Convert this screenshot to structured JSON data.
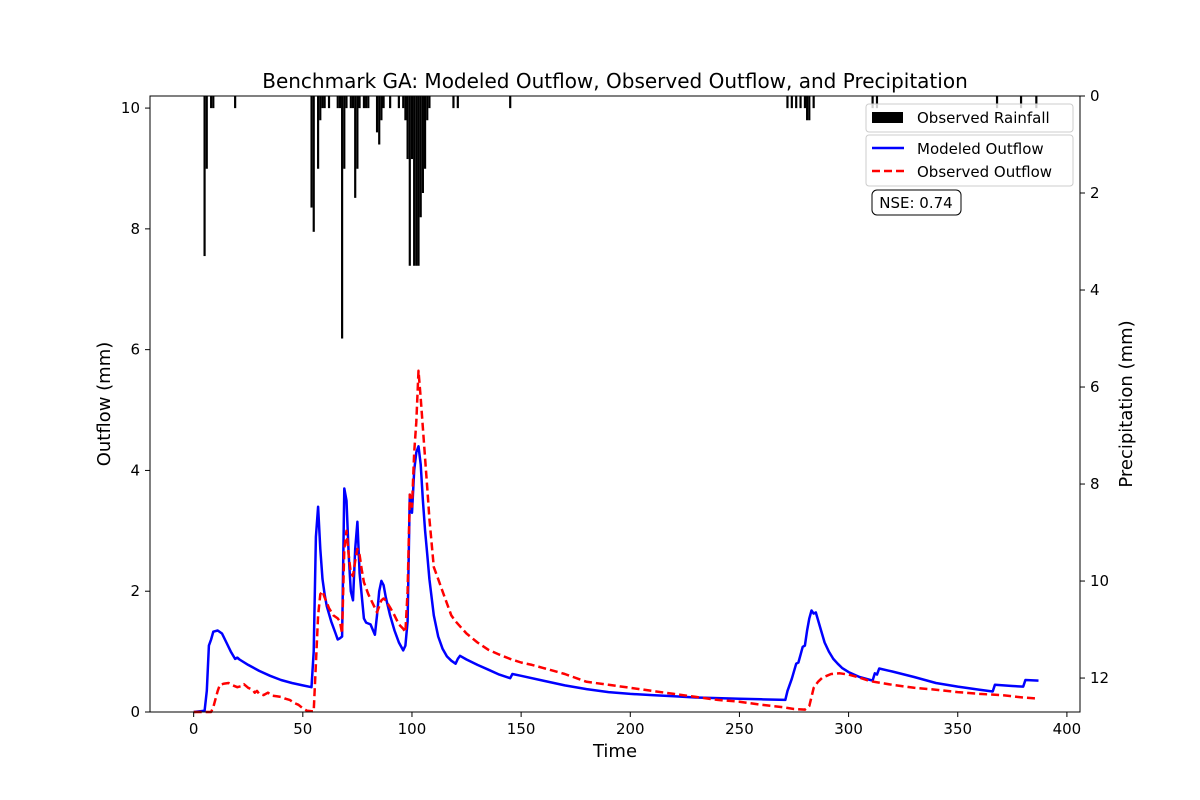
{
  "chart_data": {
    "type": "line",
    "title": "Benchmark GA: Modeled Outflow, Observed Outflow, and Precipitation",
    "xlabel": "Time",
    "ylabel": "Outflow (mm)",
    "y2label": "Precipitation (mm)",
    "xlim": [
      -20,
      406
    ],
    "ylim": [
      0,
      10.2
    ],
    "y2lim": [
      12.7,
      0
    ],
    "y2_inverted": true,
    "xticks": [
      0,
      50,
      100,
      150,
      200,
      250,
      300,
      350,
      400
    ],
    "yticks": [
      0,
      2,
      4,
      6,
      8,
      10
    ],
    "y2ticks": [
      0,
      2,
      4,
      6,
      8,
      10,
      12
    ],
    "grid": false,
    "legend_placement": "top-right",
    "annotation": "NSE: 0.74",
    "series": [
      {
        "name": "Modeled Outflow",
        "color": "#0000ff",
        "style": "solid",
        "points": [
          [
            0,
            0
          ],
          [
            5,
            0.02
          ],
          [
            6,
            0.35
          ],
          [
            7,
            1.1
          ],
          [
            8,
            1.2
          ],
          [
            9,
            1.33
          ],
          [
            11,
            1.35
          ],
          [
            13,
            1.3
          ],
          [
            15,
            1.15
          ],
          [
            17,
            1.0
          ],
          [
            19,
            0.88
          ],
          [
            20,
            0.9
          ],
          [
            21,
            0.87
          ],
          [
            25,
            0.78
          ],
          [
            30,
            0.68
          ],
          [
            35,
            0.6
          ],
          [
            40,
            0.53
          ],
          [
            45,
            0.48
          ],
          [
            50,
            0.44
          ],
          [
            54,
            0.41
          ],
          [
            55,
            1.0
          ],
          [
            56,
            2.9
          ],
          [
            57,
            3.4
          ],
          [
            58,
            2.7
          ],
          [
            59,
            2.2
          ],
          [
            60,
            1.95
          ],
          [
            61,
            1.75
          ],
          [
            63,
            1.5
          ],
          [
            65,
            1.3
          ],
          [
            66,
            1.2
          ],
          [
            67,
            1.22
          ],
          [
            68,
            1.25
          ],
          [
            69,
            3.7
          ],
          [
            70,
            3.5
          ],
          [
            71,
            2.6
          ],
          [
            72,
            2.0
          ],
          [
            73,
            1.85
          ],
          [
            74,
            2.7
          ],
          [
            75,
            3.15
          ],
          [
            76,
            2.3
          ],
          [
            78,
            1.55
          ],
          [
            79,
            1.48
          ],
          [
            81,
            1.45
          ],
          [
            83,
            1.28
          ],
          [
            84,
            1.6
          ],
          [
            85,
            2.0
          ],
          [
            86,
            2.17
          ],
          [
            87,
            2.1
          ],
          [
            88,
            1.9
          ],
          [
            90,
            1.6
          ],
          [
            92,
            1.35
          ],
          [
            94,
            1.15
          ],
          [
            96,
            1.02
          ],
          [
            97,
            1.1
          ],
          [
            98,
            1.5
          ],
          [
            99,
            3.6
          ],
          [
            100,
            3.3
          ],
          [
            101,
            4.0
          ],
          [
            102,
            4.3
          ],
          [
            103,
            4.4
          ],
          [
            104,
            4.1
          ],
          [
            105,
            3.5
          ],
          [
            106,
            3.0
          ],
          [
            107,
            2.6
          ],
          [
            108,
            2.2
          ],
          [
            110,
            1.6
          ],
          [
            112,
            1.25
          ],
          [
            114,
            1.05
          ],
          [
            116,
            0.92
          ],
          [
            118,
            0.85
          ],
          [
            120,
            0.8
          ],
          [
            121,
            0.88
          ],
          [
            122,
            0.93
          ],
          [
            125,
            0.87
          ],
          [
            130,
            0.78
          ],
          [
            135,
            0.7
          ],
          [
            140,
            0.62
          ],
          [
            145,
            0.56
          ],
          [
            146,
            0.63
          ],
          [
            150,
            0.6
          ],
          [
            160,
            0.52
          ],
          [
            170,
            0.44
          ],
          [
            180,
            0.38
          ],
          [
            190,
            0.33
          ],
          [
            200,
            0.3
          ],
          [
            210,
            0.28
          ],
          [
            220,
            0.26
          ],
          [
            230,
            0.24
          ],
          [
            240,
            0.23
          ],
          [
            250,
            0.22
          ],
          [
            260,
            0.21
          ],
          [
            271,
            0.2
          ],
          [
            272,
            0.35
          ],
          [
            274,
            0.55
          ],
          [
            276,
            0.8
          ],
          [
            277,
            0.82
          ],
          [
            278,
            0.95
          ],
          [
            279,
            1.08
          ],
          [
            280,
            1.1
          ],
          [
            281,
            1.35
          ],
          [
            282,
            1.55
          ],
          [
            283,
            1.68
          ],
          [
            284,
            1.63
          ],
          [
            285,
            1.65
          ],
          [
            287,
            1.4
          ],
          [
            289,
            1.15
          ],
          [
            291,
            1.0
          ],
          [
            293,
            0.88
          ],
          [
            295,
            0.8
          ],
          [
            297,
            0.73
          ],
          [
            300,
            0.66
          ],
          [
            305,
            0.58
          ],
          [
            310,
            0.53
          ],
          [
            311,
            0.52
          ],
          [
            312,
            0.64
          ],
          [
            313,
            0.62
          ],
          [
            314,
            0.72
          ],
          [
            320,
            0.67
          ],
          [
            330,
            0.58
          ],
          [
            340,
            0.48
          ],
          [
            350,
            0.42
          ],
          [
            360,
            0.37
          ],
          [
            366,
            0.34
          ],
          [
            367,
            0.45
          ],
          [
            375,
            0.43
          ],
          [
            380,
            0.42
          ],
          [
            381,
            0.53
          ],
          [
            387,
            0.52
          ]
        ]
      },
      {
        "name": "Observed Outflow",
        "color": "#ff0000",
        "style": "dashed",
        "points": [
          [
            0,
            0
          ],
          [
            8,
            0
          ],
          [
            9,
            0.08
          ],
          [
            11,
            0.35
          ],
          [
            12,
            0.45
          ],
          [
            14,
            0.47
          ],
          [
            16,
            0.48
          ],
          [
            18,
            0.44
          ],
          [
            20,
            0.41
          ],
          [
            22,
            0.43
          ],
          [
            23,
            0.46
          ],
          [
            25,
            0.4
          ],
          [
            27,
            0.37
          ],
          [
            28,
            0.32
          ],
          [
            29,
            0.35
          ],
          [
            30,
            0.3
          ],
          [
            32,
            0.28
          ],
          [
            34,
            0.32
          ],
          [
            36,
            0.27
          ],
          [
            38,
            0.26
          ],
          [
            40,
            0.25
          ],
          [
            42,
            0.22
          ],
          [
            44,
            0.2
          ],
          [
            46,
            0.15
          ],
          [
            48,
            0.12
          ],
          [
            50,
            0.06
          ],
          [
            52,
            0.02
          ],
          [
            55,
            0.01
          ],
          [
            56,
            0.8
          ],
          [
            57,
            1.6
          ],
          [
            58,
            1.95
          ],
          [
            59,
            2.0
          ],
          [
            60,
            1.9
          ],
          [
            62,
            1.72
          ],
          [
            64,
            1.6
          ],
          [
            66,
            1.55
          ],
          [
            67,
            1.5
          ],
          [
            68,
            1.3
          ],
          [
            69,
            2.7
          ],
          [
            70,
            3.0
          ],
          [
            71,
            2.6
          ],
          [
            72,
            2.3
          ],
          [
            73,
            2.25
          ],
          [
            74,
            2.5
          ],
          [
            75,
            2.7
          ],
          [
            76,
            2.6
          ],
          [
            77,
            2.35
          ],
          [
            78,
            2.15
          ],
          [
            80,
            1.95
          ],
          [
            82,
            1.8
          ],
          [
            84,
            1.65
          ],
          [
            86,
            1.85
          ],
          [
            87,
            1.88
          ],
          [
            88,
            1.85
          ],
          [
            90,
            1.73
          ],
          [
            92,
            1.6
          ],
          [
            94,
            1.45
          ],
          [
            96,
            1.38
          ],
          [
            97,
            1.32
          ],
          [
            98,
            2.0
          ],
          [
            99,
            3.6
          ],
          [
            100,
            3.4
          ],
          [
            101,
            4.3
          ],
          [
            102,
            4.8
          ],
          [
            103,
            5.65
          ],
          [
            104,
            5.2
          ],
          [
            105,
            4.7
          ],
          [
            106,
            4.2
          ],
          [
            107,
            3.7
          ],
          [
            108,
            3.2
          ],
          [
            109,
            2.8
          ],
          [
            110,
            2.4
          ],
          [
            112,
            2.2
          ],
          [
            114,
            2.0
          ],
          [
            116,
            1.8
          ],
          [
            118,
            1.6
          ],
          [
            120,
            1.5
          ],
          [
            125,
            1.3
          ],
          [
            130,
            1.15
          ],
          [
            135,
            1.03
          ],
          [
            140,
            0.95
          ],
          [
            145,
            0.88
          ],
          [
            150,
            0.82
          ],
          [
            155,
            0.78
          ],
          [
            160,
            0.73
          ],
          [
            170,
            0.63
          ],
          [
            180,
            0.5
          ],
          [
            190,
            0.45
          ],
          [
            200,
            0.4
          ],
          [
            210,
            0.35
          ],
          [
            220,
            0.3
          ],
          [
            230,
            0.25
          ],
          [
            240,
            0.2
          ],
          [
            250,
            0.17
          ],
          [
            260,
            0.12
          ],
          [
            270,
            0.08
          ],
          [
            275,
            0.05
          ],
          [
            280,
            0.04
          ],
          [
            282,
            0.1
          ],
          [
            283,
            0.25
          ],
          [
            284,
            0.4
          ],
          [
            286,
            0.5
          ],
          [
            288,
            0.57
          ],
          [
            290,
            0.6
          ],
          [
            292,
            0.63
          ],
          [
            296,
            0.64
          ],
          [
            300,
            0.62
          ],
          [
            305,
            0.57
          ],
          [
            310,
            0.51
          ],
          [
            315,
            0.48
          ],
          [
            320,
            0.45
          ],
          [
            330,
            0.4
          ],
          [
            340,
            0.37
          ],
          [
            350,
            0.33
          ],
          [
            360,
            0.3
          ],
          [
            370,
            0.28
          ],
          [
            380,
            0.24
          ],
          [
            387,
            0.22
          ]
        ]
      }
    ],
    "precipitation": {
      "name": "Observed Rainfall",
      "color": "#000000",
      "bars": [
        [
          5,
          3.3
        ],
        [
          6,
          1.5
        ],
        [
          8,
          0.25
        ],
        [
          9,
          0.25
        ],
        [
          19,
          0.25
        ],
        [
          54,
          2.3
        ],
        [
          55,
          2.8
        ],
        [
          57,
          1.5
        ],
        [
          58,
          0.5
        ],
        [
          59,
          0.25
        ],
        [
          60,
          0.25
        ],
        [
          62,
          0.25
        ],
        [
          66,
          0.25
        ],
        [
          67,
          0.25
        ],
        [
          68,
          5.0
        ],
        [
          69,
          1.5
        ],
        [
          70,
          0.25
        ],
        [
          72,
          0.25
        ],
        [
          73,
          0.25
        ],
        [
          74,
          2.1
        ],
        [
          75,
          1.5
        ],
        [
          76,
          0.25
        ],
        [
          78,
          0.25
        ],
        [
          79,
          0.25
        ],
        [
          80,
          0.25
        ],
        [
          84,
          0.75
        ],
        [
          85,
          1.0
        ],
        [
          86,
          0.5
        ],
        [
          87,
          0.25
        ],
        [
          90,
          0.25
        ],
        [
          94,
          0.25
        ],
        [
          96,
          0.25
        ],
        [
          97,
          0.5
        ],
        [
          98,
          1.3
        ],
        [
          99,
          3.5
        ],
        [
          100,
          1.3
        ],
        [
          101,
          3.5
        ],
        [
          102,
          3.5
        ],
        [
          103,
          3.5
        ],
        [
          104,
          2.5
        ],
        [
          105,
          2.0
        ],
        [
          106,
          1.5
        ],
        [
          107,
          0.5
        ],
        [
          108,
          0.25
        ],
        [
          119,
          0.25
        ],
        [
          121,
          0.25
        ],
        [
          145,
          0.25
        ],
        [
          272,
          0.25
        ],
        [
          274,
          0.25
        ],
        [
          276,
          0.25
        ],
        [
          278,
          0.25
        ],
        [
          280,
          0.25
        ],
        [
          281,
          0.5
        ],
        [
          282,
          0.5
        ],
        [
          284,
          0.25
        ],
        [
          311,
          0.25
        ],
        [
          313,
          0.25
        ],
        [
          368,
          0.25
        ],
        [
          379,
          0.25
        ],
        [
          386,
          0.25
        ]
      ]
    }
  }
}
